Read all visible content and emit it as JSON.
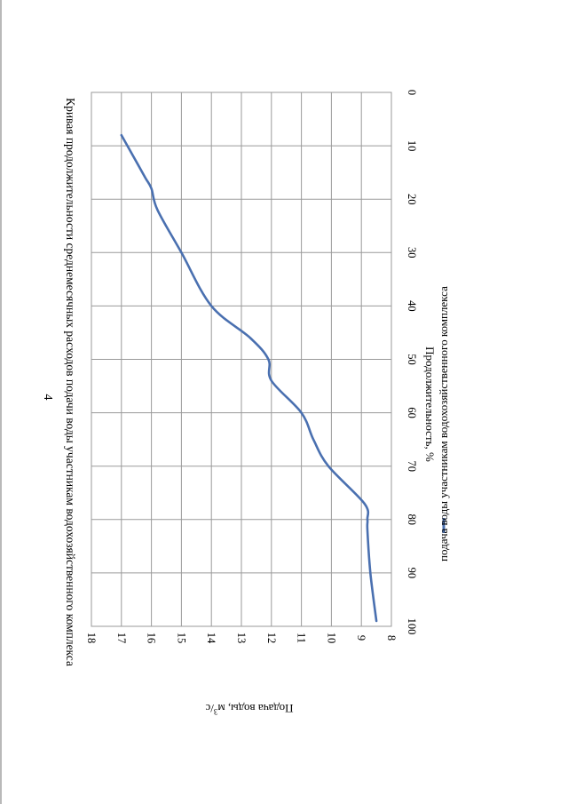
{
  "page": {
    "number": "4"
  },
  "chart_data": {
    "type": "line",
    "title": "Кривая продолжительности среднемесячных расходов подачи воды участникам водохозяйственного комплекса",
    "xlabel": "Продолжительность, %",
    "ylabel": "Подача воды, м³/с",
    "ylabel_base": "Подача воды, м",
    "ylabel_sup": "3",
    "ylabel_tail": "/с",
    "xlim": [
      0,
      100
    ],
    "ylim": [
      8,
      18
    ],
    "xticks": [
      0,
      10,
      20,
      30,
      40,
      50,
      60,
      70,
      80,
      90,
      100
    ],
    "yticks": [
      8,
      9,
      10,
      11,
      12,
      13,
      14,
      15,
      16,
      17,
      18
    ],
    "grid": true,
    "legend_position": "bottom",
    "series": [
      {
        "name": "подача воды участникам водохозяйственного комплекса",
        "color": "#4a70b0",
        "x": [
          8,
          12,
          16,
          18,
          22,
          30,
          40,
          46,
          50,
          54,
          60,
          65,
          70,
          77,
          80,
          82,
          90,
          99
        ],
        "y": [
          17.0,
          16.6,
          16.2,
          16.0,
          15.8,
          15.0,
          14.0,
          12.7,
          12.1,
          12.0,
          11.0,
          10.6,
          10.1,
          8.9,
          8.8,
          8.8,
          8.7,
          8.5
        ]
      }
    ]
  }
}
